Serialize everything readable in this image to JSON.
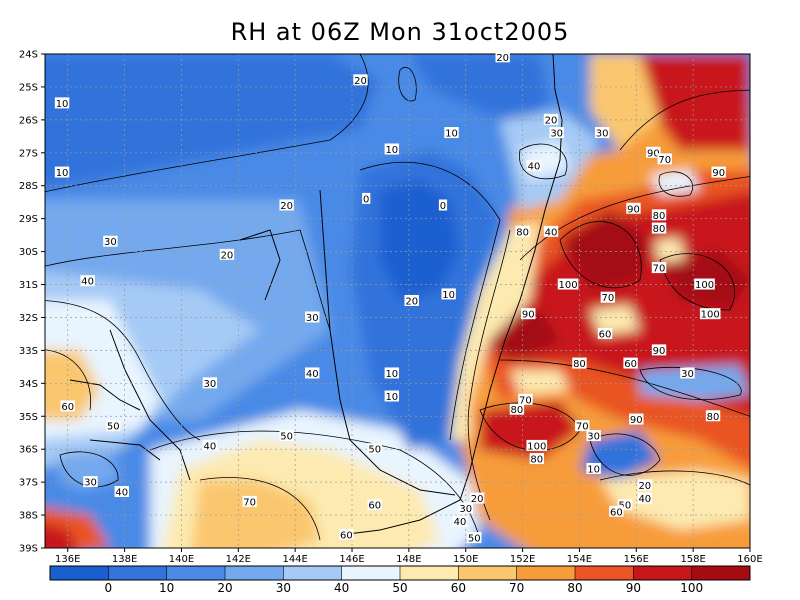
{
  "title": "RH at 06Z Mon 31oct2005",
  "map": {
    "lat_labels": [
      "24S",
      "25S",
      "26S",
      "27S",
      "28S",
      "29S",
      "30S",
      "31S",
      "32S",
      "33S",
      "34S",
      "35S",
      "36S",
      "37S",
      "38S",
      "39S"
    ],
    "lon_labels": [
      "136E",
      "138E",
      "140E",
      "142E",
      "144E",
      "146E",
      "148E",
      "150E",
      "152E",
      "154E",
      "156E",
      "158E",
      "160E"
    ],
    "contour_labels": [
      {
        "text": "20",
        "lon": 151.3,
        "lat": -24.1
      },
      {
        "text": "20",
        "lon": 146.3,
        "lat": -24.8
      },
      {
        "text": "10",
        "lon": 135.8,
        "lat": -25.5
      },
      {
        "text": "20",
        "lon": 153.0,
        "lat": -26.0
      },
      {
        "text": "30",
        "lon": 153.2,
        "lat": -26.4
      },
      {
        "text": "30",
        "lon": 154.8,
        "lat": -26.4
      },
      {
        "text": "10",
        "lon": 149.5,
        "lat": -26.4
      },
      {
        "text": "10",
        "lon": 147.4,
        "lat": -26.9
      },
      {
        "text": "90",
        "lon": 156.6,
        "lat": -27.0
      },
      {
        "text": "70",
        "lon": 157.0,
        "lat": -27.2
      },
      {
        "text": "40",
        "lon": 152.4,
        "lat": -27.4
      },
      {
        "text": "10",
        "lon": 135.8,
        "lat": -27.6
      },
      {
        "text": "90",
        "lon": 158.9,
        "lat": -27.6
      },
      {
        "text": "0",
        "lon": 146.5,
        "lat": -28.4
      },
      {
        "text": "0",
        "lon": 149.2,
        "lat": -28.6
      },
      {
        "text": "20",
        "lon": 143.7,
        "lat": -28.6
      },
      {
        "text": "90",
        "lon": 155.9,
        "lat": -28.7
      },
      {
        "text": "80",
        "lon": 156.8,
        "lat": -28.9
      },
      {
        "text": "80",
        "lon": 152.0,
        "lat": -29.4
      },
      {
        "text": "40",
        "lon": 153.0,
        "lat": -29.4
      },
      {
        "text": "80",
        "lon": 156.8,
        "lat": -29.3
      },
      {
        "text": "30",
        "lon": 137.5,
        "lat": -29.7
      },
      {
        "text": "20",
        "lon": 141.6,
        "lat": -30.1
      },
      {
        "text": "70",
        "lon": 156.8,
        "lat": -30.5
      },
      {
        "text": "40",
        "lon": 136.7,
        "lat": -30.9
      },
      {
        "text": "100",
        "lon": 153.6,
        "lat": -31.0
      },
      {
        "text": "100",
        "lon": 158.4,
        "lat": -31.0
      },
      {
        "text": "10",
        "lon": 149.4,
        "lat": -31.3
      },
      {
        "text": "70",
        "lon": 155.0,
        "lat": -31.4
      },
      {
        "text": "20",
        "lon": 148.1,
        "lat": -31.5
      },
      {
        "text": "90",
        "lon": 152.2,
        "lat": -31.9
      },
      {
        "text": "100",
        "lon": 158.6,
        "lat": -31.9
      },
      {
        "text": "30",
        "lon": 144.6,
        "lat": -32.0
      },
      {
        "text": "60",
        "lon": 154.9,
        "lat": -32.5
      },
      {
        "text": "90",
        "lon": 156.8,
        "lat": -33.0
      },
      {
        "text": "60",
        "lon": 155.8,
        "lat": -33.4
      },
      {
        "text": "80",
        "lon": 154.0,
        "lat": -33.4
      },
      {
        "text": "10",
        "lon": 147.4,
        "lat": -33.7
      },
      {
        "text": "40",
        "lon": 144.6,
        "lat": -33.7
      },
      {
        "text": "30",
        "lon": 141.0,
        "lat": -34.0
      },
      {
        "text": "30",
        "lon": 157.8,
        "lat": -33.7
      },
      {
        "text": "10",
        "lon": 147.4,
        "lat": -34.4
      },
      {
        "text": "70",
        "lon": 152.1,
        "lat": -34.5
      },
      {
        "text": "60",
        "lon": 136.0,
        "lat": -34.7
      },
      {
        "text": "80",
        "lon": 151.8,
        "lat": -34.8
      },
      {
        "text": "90",
        "lon": 156.0,
        "lat": -35.1
      },
      {
        "text": "80",
        "lon": 158.7,
        "lat": -35.0
      },
      {
        "text": "70",
        "lon": 154.1,
        "lat": -35.3
      },
      {
        "text": "50",
        "lon": 137.6,
        "lat": -35.3
      },
      {
        "text": "30",
        "lon": 154.5,
        "lat": -35.6
      },
      {
        "text": "50",
        "lon": 143.7,
        "lat": -35.6
      },
      {
        "text": "40",
        "lon": 141.0,
        "lat": -35.9
      },
      {
        "text": "100",
        "lon": 152.5,
        "lat": -35.9
      },
      {
        "text": "50",
        "lon": 146.8,
        "lat": -36.0
      },
      {
        "text": "80",
        "lon": 152.5,
        "lat": -36.3
      },
      {
        "text": "10",
        "lon": 154.5,
        "lat": -36.6
      },
      {
        "text": "30",
        "lon": 136.8,
        "lat": -37.0
      },
      {
        "text": "40",
        "lon": 137.9,
        "lat": -37.3
      },
      {
        "text": "20",
        "lon": 156.3,
        "lat": -37.1
      },
      {
        "text": "40",
        "lon": 156.3,
        "lat": -37.5
      },
      {
        "text": "20",
        "lon": 150.4,
        "lat": -37.5
      },
      {
        "text": "60",
        "lon": 146.8,
        "lat": -37.7
      },
      {
        "text": "70",
        "lon": 142.4,
        "lat": -37.6
      },
      {
        "text": "50",
        "lon": 155.6,
        "lat": -37.7
      },
      {
        "text": "30",
        "lon": 150.0,
        "lat": -37.8
      },
      {
        "text": "60",
        "lon": 155.3,
        "lat": -37.9
      },
      {
        "text": "40",
        "lon": 149.8,
        "lat": -38.2
      },
      {
        "text": "60",
        "lon": 145.8,
        "lat": -38.6
      },
      {
        "text": "50",
        "lon": 150.3,
        "lat": -38.7
      }
    ]
  },
  "colorbar": {
    "labels": [
      "0",
      "10",
      "20",
      "30",
      "40",
      "50",
      "60",
      "70",
      "80",
      "90",
      "100"
    ],
    "colors": [
      "#1a5fd0",
      "#3373db",
      "#4a8ae6",
      "#74a9ee",
      "#a5caf5",
      "#e8f4fe",
      "#fdeab0",
      "#fac76e",
      "#f79c3a",
      "#e95524",
      "#c8161a",
      "#a40c12"
    ]
  }
}
